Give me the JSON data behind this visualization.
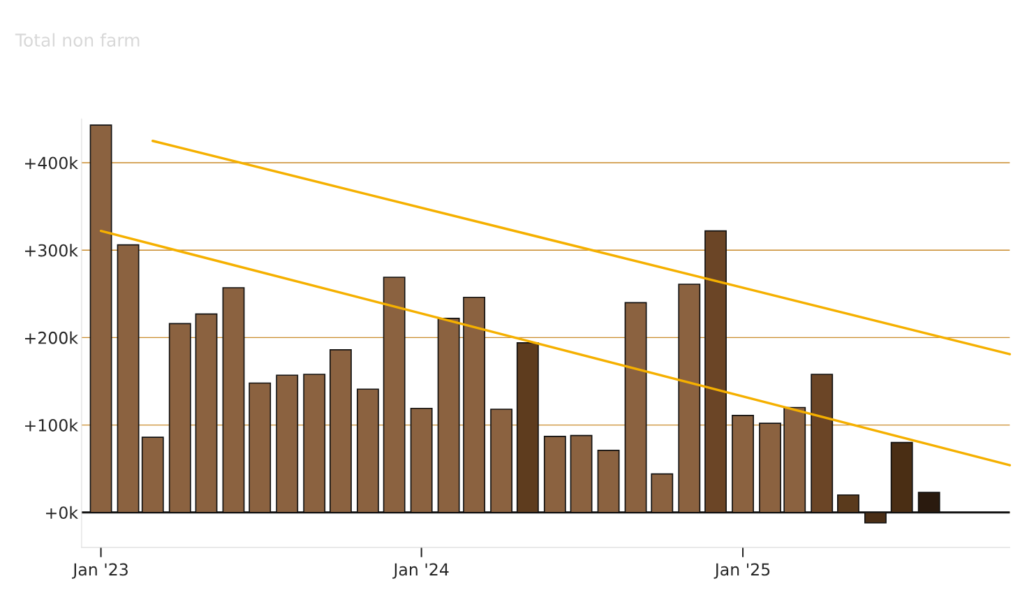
{
  "chart_data": {
    "type": "bar",
    "title": "Total non farm",
    "x": [
      "2023-01",
      "2023-02",
      "2023-03",
      "2023-04",
      "2023-05",
      "2023-06",
      "2023-07",
      "2023-08",
      "2023-09",
      "2023-10",
      "2023-11",
      "2023-12",
      "2024-01",
      "2024-02",
      "2024-03",
      "2024-04",
      "2024-05",
      "2024-06",
      "2024-07",
      "2024-08",
      "2024-09",
      "2024-10",
      "2024-11",
      "2024-12",
      "2025-01",
      "2025-02",
      "2025-03",
      "2025-04",
      "2025-05",
      "2025-06",
      "2025-07",
      "2025-08"
    ],
    "series": [
      {
        "values": [
          443,
          306,
          86,
          216,
          227,
          257,
          148,
          157,
          158,
          186,
          141,
          269,
          119,
          222,
          246,
          118,
          194,
          87,
          88,
          71,
          240,
          44,
          261,
          322,
          111,
          102,
          120,
          158,
          20,
          -12,
          80,
          23
        ],
        "colors": [
          "#8b6240",
          "#8b6240",
          "#8b6240",
          "#8b6240",
          "#8b6240",
          "#8b6240",
          "#8b6240",
          "#8b6240",
          "#8b6240",
          "#8b6240",
          "#8b6240",
          "#8b6240",
          "#8b6240",
          "#8b6240",
          "#8b6240",
          "#8b6240",
          "#5e3c1e",
          "#8b6240",
          "#8b6240",
          "#8b6240",
          "#8b6240",
          "#8b6240",
          "#8b6240",
          "#6b4526",
          "#8b6240",
          "#8b6240",
          "#8b6240",
          "#6b4526",
          "#5a3a1c",
          "#4a2e16",
          "#4a2e14",
          "#2a1a0e"
        ]
      },
      {
        "type": "line",
        "color": "#f5b000",
        "x": [
          "2023-03",
          "2025-11"
        ],
        "values": [
          425,
          181
        ]
      },
      {
        "type": "line",
        "color": "#f5b000",
        "x": [
          "2023-01",
          "2025-11"
        ],
        "values": [
          322,
          54
        ]
      }
    ],
    "xlim": [
      "2022-12-10",
      "2025-11-01"
    ],
    "xticks": [
      {
        "value": "2023-01",
        "label": "Jan '23"
      },
      {
        "value": "2024-01",
        "label": "Jan '24"
      },
      {
        "value": "2025-01",
        "label": "Jan '25"
      }
    ],
    "ylim": [
      -40,
      450
    ],
    "yticks": [
      {
        "value": 0,
        "label": "+0k"
      },
      {
        "value": 100,
        "label": "+100k"
      },
      {
        "value": 200,
        "label": "+200k"
      },
      {
        "value": 300,
        "label": "+300k"
      },
      {
        "value": 400,
        "label": "+400k"
      }
    ],
    "grid": "y",
    "ref_lines": [
      {
        "axis": "y",
        "value": 0,
        "color": "#111111"
      }
    ]
  }
}
